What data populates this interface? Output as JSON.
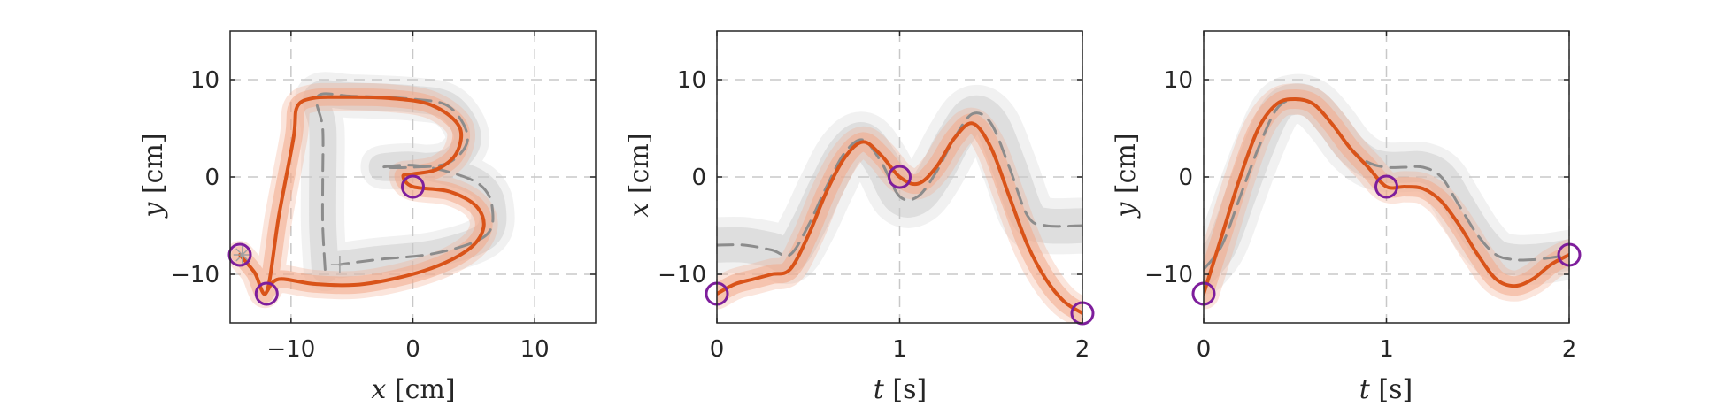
{
  "colors": {
    "model_line": "#d95319",
    "model_band": "#f2a98a",
    "demo_line": "#8c8c8c",
    "demo_band": "#c8c8c8",
    "via_point": "#7e1e9c",
    "grid": "#c8c8c8",
    "axes": "#262626"
  },
  "chart_data": [
    {
      "type": "line",
      "xvar": "x",
      "xunit": "[cm]",
      "yvar": "y",
      "yunit": "[cm]",
      "xlim": [
        -15,
        15
      ],
      "ylim": [
        -15,
        15
      ],
      "xticks": [
        -10,
        0,
        10
      ],
      "yticks": [
        -10,
        0,
        10
      ],
      "grid": true,
      "markers": [
        {
          "x": -14,
          "y": -8,
          "shape": "star"
        },
        {
          "x": -6,
          "y": -9,
          "shape": "plus"
        }
      ],
      "series": [
        {
          "role": "demo",
          "band": 1.4,
          "points": [
            [
              -7.2,
              -9.5
            ],
            [
              -7.4,
              -5
            ],
            [
              -7.4,
              0
            ],
            [
              -7.4,
              5
            ],
            [
              -7.8,
              8.3
            ],
            [
              -5,
              8.3
            ],
            [
              0,
              8
            ],
            [
              3,
              7.2
            ],
            [
              4.5,
              4
            ],
            [
              3,
              1.5
            ],
            [
              0,
              1
            ],
            [
              -2.5,
              1
            ],
            [
              0,
              1.2
            ],
            [
              3,
              0.5
            ],
            [
              5.5,
              -0.8
            ],
            [
              6.5,
              -3
            ],
            [
              6,
              -6
            ],
            [
              2,
              -7.8
            ],
            [
              -3,
              -8.5
            ],
            [
              -6,
              -9
            ]
          ]
        },
        {
          "role": "model",
          "band": 0.9,
          "points": [
            [
              -14.2,
              -8
            ],
            [
              -13,
              -9.8
            ],
            [
              -12,
              -11.8
            ],
            [
              -11,
              -4
            ],
            [
              -9.8,
              4
            ],
            [
              -9.5,
              7.2
            ],
            [
              -8.2,
              8.1
            ],
            [
              -6,
              8.2
            ],
            [
              -2,
              8.1
            ],
            [
              1.5,
              7.4
            ],
            [
              3.8,
              5.2
            ],
            [
              3.6,
              2.5
            ],
            [
              2,
              0.8
            ],
            [
              0,
              0.3
            ],
            [
              -0.8,
              0.1
            ],
            [
              0,
              -1
            ],
            [
              3,
              -1.5
            ],
            [
              5.2,
              -3
            ],
            [
              5.8,
              -5.2
            ],
            [
              4.5,
              -7.5
            ],
            [
              1,
              -9.6
            ],
            [
              -4,
              -11
            ],
            [
              -8,
              -11
            ],
            [
              -11,
              -10.5
            ],
            [
              -12,
              -11.8
            ]
          ]
        }
      ],
      "via_points": [
        [
          -14.2,
          -8
        ],
        [
          -12,
          -12
        ],
        [
          0,
          -1
        ]
      ]
    },
    {
      "type": "line",
      "xvar": "t",
      "xunit": "[s]",
      "yvar": "x",
      "yunit": "[cm]",
      "xlim": [
        0,
        2
      ],
      "ylim": [
        -15,
        15
      ],
      "xticks": [
        0,
        1,
        2
      ],
      "yticks": [
        -10,
        0,
        10
      ],
      "grid": true,
      "series": [
        {
          "role": "demo",
          "band": 1.8,
          "points": [
            [
              0,
              -7
            ],
            [
              0.15,
              -7
            ],
            [
              0.3,
              -7.5
            ],
            [
              0.4,
              -8
            ],
            [
              0.5,
              -5
            ],
            [
              0.6,
              -1
            ],
            [
              0.7,
              2.5
            ],
            [
              0.8,
              3.8
            ],
            [
              0.9,
              1.5
            ],
            [
              1,
              -2
            ],
            [
              1.1,
              -2
            ],
            [
              1.2,
              0.5
            ],
            [
              1.3,
              4
            ],
            [
              1.4,
              6.5
            ],
            [
              1.5,
              5.5
            ],
            [
              1.6,
              1
            ],
            [
              1.7,
              -4
            ],
            [
              1.8,
              -5
            ],
            [
              2,
              -5
            ]
          ]
        },
        {
          "role": "model",
          "band": 1.0,
          "points": [
            [
              0,
              -12
            ],
            [
              0.1,
              -11
            ],
            [
              0.2,
              -10.5
            ],
            [
              0.3,
              -10
            ],
            [
              0.4,
              -9.5
            ],
            [
              0.5,
              -6
            ],
            [
              0.6,
              -1.5
            ],
            [
              0.7,
              2
            ],
            [
              0.8,
              3.6
            ],
            [
              0.9,
              2.2
            ],
            [
              1,
              0
            ],
            [
              1.1,
              -0.7
            ],
            [
              1.2,
              1
            ],
            [
              1.3,
              4
            ],
            [
              1.4,
              5.5
            ],
            [
              1.5,
              3
            ],
            [
              1.6,
              -2
            ],
            [
              1.7,
              -7
            ],
            [
              1.8,
              -10.5
            ],
            [
              1.9,
              -12.8
            ],
            [
              2,
              -14
            ]
          ]
        }
      ],
      "via_points": [
        [
          0,
          -12
        ],
        [
          1,
          0
        ],
        [
          2,
          -14
        ]
      ]
    },
    {
      "type": "line",
      "xvar": "t",
      "xunit": "[s]",
      "yvar": "y",
      "yunit": "[cm]",
      "xlim": [
        0,
        2
      ],
      "ylim": [
        -15,
        15
      ],
      "xticks": [
        0,
        1,
        2
      ],
      "yticks": [
        -10,
        0,
        10
      ],
      "grid": true,
      "series": [
        {
          "role": "demo",
          "band": 1.6,
          "points": [
            [
              0,
              -9.5
            ],
            [
              0.1,
              -7
            ],
            [
              0.2,
              -2
            ],
            [
              0.3,
              3
            ],
            [
              0.4,
              7
            ],
            [
              0.5,
              8
            ],
            [
              0.6,
              7.5
            ],
            [
              0.7,
              5.5
            ],
            [
              0.8,
              3
            ],
            [
              0.9,
              1.5
            ],
            [
              1,
              1
            ],
            [
              1.1,
              1
            ],
            [
              1.2,
              1
            ],
            [
              1.3,
              0
            ],
            [
              1.4,
              -3
            ],
            [
              1.5,
              -6
            ],
            [
              1.6,
              -8
            ],
            [
              1.7,
              -8.5
            ],
            [
              1.8,
              -8.5
            ],
            [
              1.9,
              -8.3
            ],
            [
              2,
              -8
            ]
          ]
        },
        {
          "role": "model",
          "band": 1.0,
          "points": [
            [
              0,
              -12
            ],
            [
              0.1,
              -6
            ],
            [
              0.2,
              0
            ],
            [
              0.3,
              5
            ],
            [
              0.4,
              7.5
            ],
            [
              0.5,
              8
            ],
            [
              0.6,
              7.5
            ],
            [
              0.7,
              5.5
            ],
            [
              0.8,
              3
            ],
            [
              0.9,
              1
            ],
            [
              1,
              -1
            ],
            [
              1.1,
              -1
            ],
            [
              1.2,
              -1.2
            ],
            [
              1.3,
              -2.5
            ],
            [
              1.4,
              -5
            ],
            [
              1.5,
              -8
            ],
            [
              1.6,
              -10.5
            ],
            [
              1.7,
              -11.2
            ],
            [
              1.8,
              -10.5
            ],
            [
              1.9,
              -9
            ],
            [
              2,
              -8
            ]
          ]
        }
      ],
      "via_points": [
        [
          0,
          -12
        ],
        [
          1,
          -1
        ],
        [
          2,
          -8
        ]
      ]
    }
  ]
}
